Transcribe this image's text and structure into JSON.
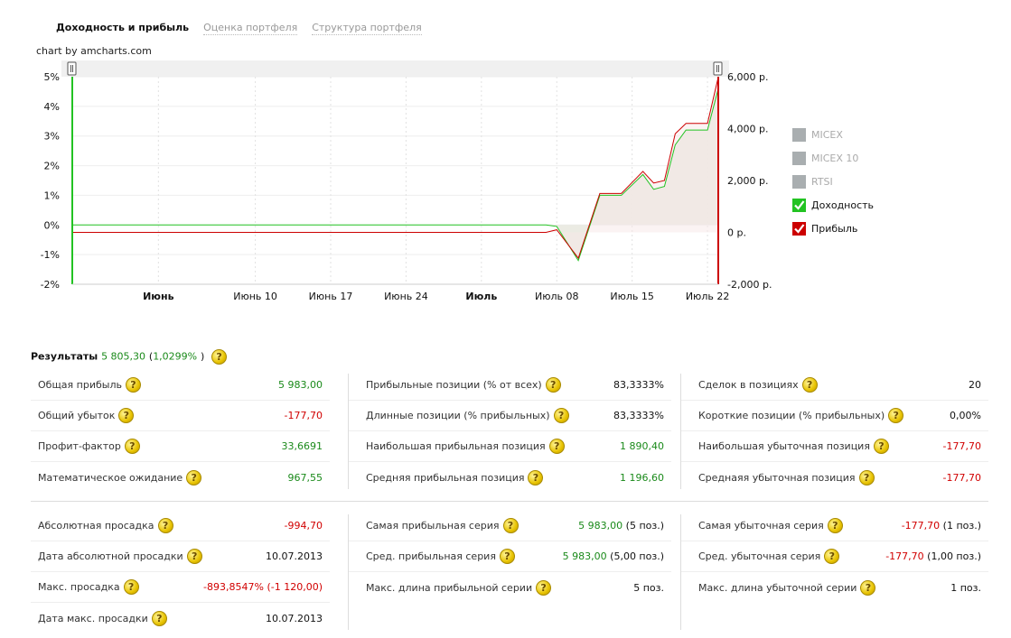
{
  "tabs": [
    {
      "label": "Доходность и прибыль",
      "active": true
    },
    {
      "label": "Оценка портфеля",
      "active": false
    },
    {
      "label": "Структура портфеля",
      "active": false
    }
  ],
  "credit": "chart by amcharts.com",
  "legend": [
    {
      "label": "MICEX",
      "checked": false,
      "color": "#a9aeb0"
    },
    {
      "label": "MICEX 10",
      "checked": false,
      "color": "#a9aeb0"
    },
    {
      "label": "RTSI",
      "checked": false,
      "color": "#a9aeb0"
    },
    {
      "label": "Доходность",
      "checked": true,
      "color": "#22c322"
    },
    {
      "label": "Прибыль",
      "checked": true,
      "color": "#cc0000"
    }
  ],
  "chart_data": {
    "type": "line",
    "left_axis": {
      "ticks": [
        "5%",
        "4%",
        "3%",
        "2%",
        "1%",
        "0%",
        "-1%",
        "-2%"
      ],
      "min": -2,
      "max": 5
    },
    "right_axis": {
      "ticks": [
        "6,000 р.",
        "4,000 р.",
        "2,000 р.",
        "0 р.",
        "-2,000 р."
      ],
      "min": -2000,
      "max": 6000
    },
    "x_axis": {
      "start": "2013-05-24",
      "end": "2013-07-23",
      "ticks": [
        {
          "label": "Июнь",
          "date": "2013-06-01",
          "bold": true
        },
        {
          "label": "Июнь 10",
          "date": "2013-06-10",
          "bold": false
        },
        {
          "label": "Июнь 17",
          "date": "2013-06-17",
          "bold": false
        },
        {
          "label": "Июнь 24",
          "date": "2013-06-24",
          "bold": false
        },
        {
          "label": "Июль",
          "date": "2013-07-01",
          "bold": true
        },
        {
          "label": "Июль 08",
          "date": "2013-07-08",
          "bold": false
        },
        {
          "label": "Июль 15",
          "date": "2013-07-15",
          "bold": false
        },
        {
          "label": "Июль 22",
          "date": "2013-07-22",
          "bold": false
        }
      ]
    },
    "series": [
      {
        "name": "Доходность",
        "axis": "left",
        "color": "#22c322",
        "points": [
          [
            "2013-05-24",
            0
          ],
          [
            "2013-07-07",
            0
          ],
          [
            "2013-07-08",
            -0.05
          ],
          [
            "2013-07-10",
            -1.2
          ],
          [
            "2013-07-12",
            1.0
          ],
          [
            "2013-07-14",
            1.0
          ],
          [
            "2013-07-16",
            1.7
          ],
          [
            "2013-07-17",
            1.2
          ],
          [
            "2013-07-18",
            1.3
          ],
          [
            "2013-07-19",
            2.7
          ],
          [
            "2013-07-20",
            3.2
          ],
          [
            "2013-07-22",
            3.2
          ],
          [
            "2013-07-23",
            4.6
          ]
        ]
      },
      {
        "name": "Прибыль",
        "axis": "right",
        "color": "#cc0000",
        "points": [
          [
            "2013-05-24",
            0
          ],
          [
            "2013-07-07",
            0
          ],
          [
            "2013-07-08",
            100
          ],
          [
            "2013-07-10",
            -994.7
          ],
          [
            "2013-07-12",
            1500
          ],
          [
            "2013-07-14",
            1500
          ],
          [
            "2013-07-16",
            2350
          ],
          [
            "2013-07-17",
            1900
          ],
          [
            "2013-07-18",
            2000
          ],
          [
            "2013-07-19",
            3800
          ],
          [
            "2013-07-20",
            4200
          ],
          [
            "2013-07-22",
            4200
          ],
          [
            "2013-07-23",
            5983
          ]
        ]
      }
    ]
  },
  "results": {
    "title": "Результаты",
    "total": "5 805,30",
    "paren_open": "(",
    "percent": "1,0299%",
    "paren_close": ")",
    "block1": {
      "col1": [
        {
          "label": "Общая прибыль",
          "value": "5 983,00",
          "color": "green"
        },
        {
          "label": "Общий убыток",
          "value": "-177,70",
          "color": "red"
        },
        {
          "label": "Профит-фактор",
          "value": "33,6691",
          "color": "green"
        },
        {
          "label": "Математическое ожидание",
          "value": "967,55",
          "color": "green"
        }
      ],
      "col2": [
        {
          "label": "Прибыльные позиции (% от всех)",
          "value": "83,3333%",
          "color": "black"
        },
        {
          "label": "Длинные позиции (% прибыльных)",
          "value": "83,3333%",
          "color": "black"
        },
        {
          "label": "Наибольшая прибыльная позиция",
          "value": "1 890,40",
          "color": "green"
        },
        {
          "label": "Средняя прибыльная позиция",
          "value": "1 196,60",
          "color": "green"
        }
      ],
      "col3": [
        {
          "label": "Сделок в позициях",
          "value": "20",
          "color": "black"
        },
        {
          "label": "Короткие позиции (% прибыльных)",
          "value": "0,00%",
          "color": "black"
        },
        {
          "label": "Наибольшая убыточная позиция",
          "value": "-177,70",
          "color": "red"
        },
        {
          "label": "Среднаяя убыточная позиция",
          "value": "-177,70",
          "color": "red"
        }
      ]
    },
    "block2": {
      "col1": [
        {
          "label": "Абсолютная просадка",
          "value": "-994,70",
          "color": "red"
        },
        {
          "label": "Дата абсолютной просадки",
          "value": "10.07.2013",
          "color": "black"
        },
        {
          "label": "Макс. просадка",
          "value": "-893,8547% (-1 120,00)",
          "color": "red"
        },
        {
          "label": "Дата макс. просадки",
          "value": "10.07.2013",
          "color": "black"
        }
      ],
      "col2": [
        {
          "label": "Самая прибыльная серия",
          "value": "5 983,00",
          "suffix": " (5 поз.)",
          "color": "green"
        },
        {
          "label": "Сред. прибыльная серия",
          "value": "5 983,00",
          "suffix": " (5,00 поз.)",
          "color": "green"
        },
        {
          "label": "Макс. длина прибыльной серии",
          "value": "5 поз.",
          "color": "black"
        }
      ],
      "col3": [
        {
          "label": "Самая убыточная серия",
          "value": "-177,70",
          "suffix": " (1 поз.)",
          "color": "red"
        },
        {
          "label": "Сред. убыточная серия",
          "value": "-177,70",
          "suffix": " (1,00 поз.)",
          "color": "red"
        },
        {
          "label": "Макс. длина убыточной серии",
          "value": "1 поз.",
          "color": "black"
        }
      ]
    }
  }
}
